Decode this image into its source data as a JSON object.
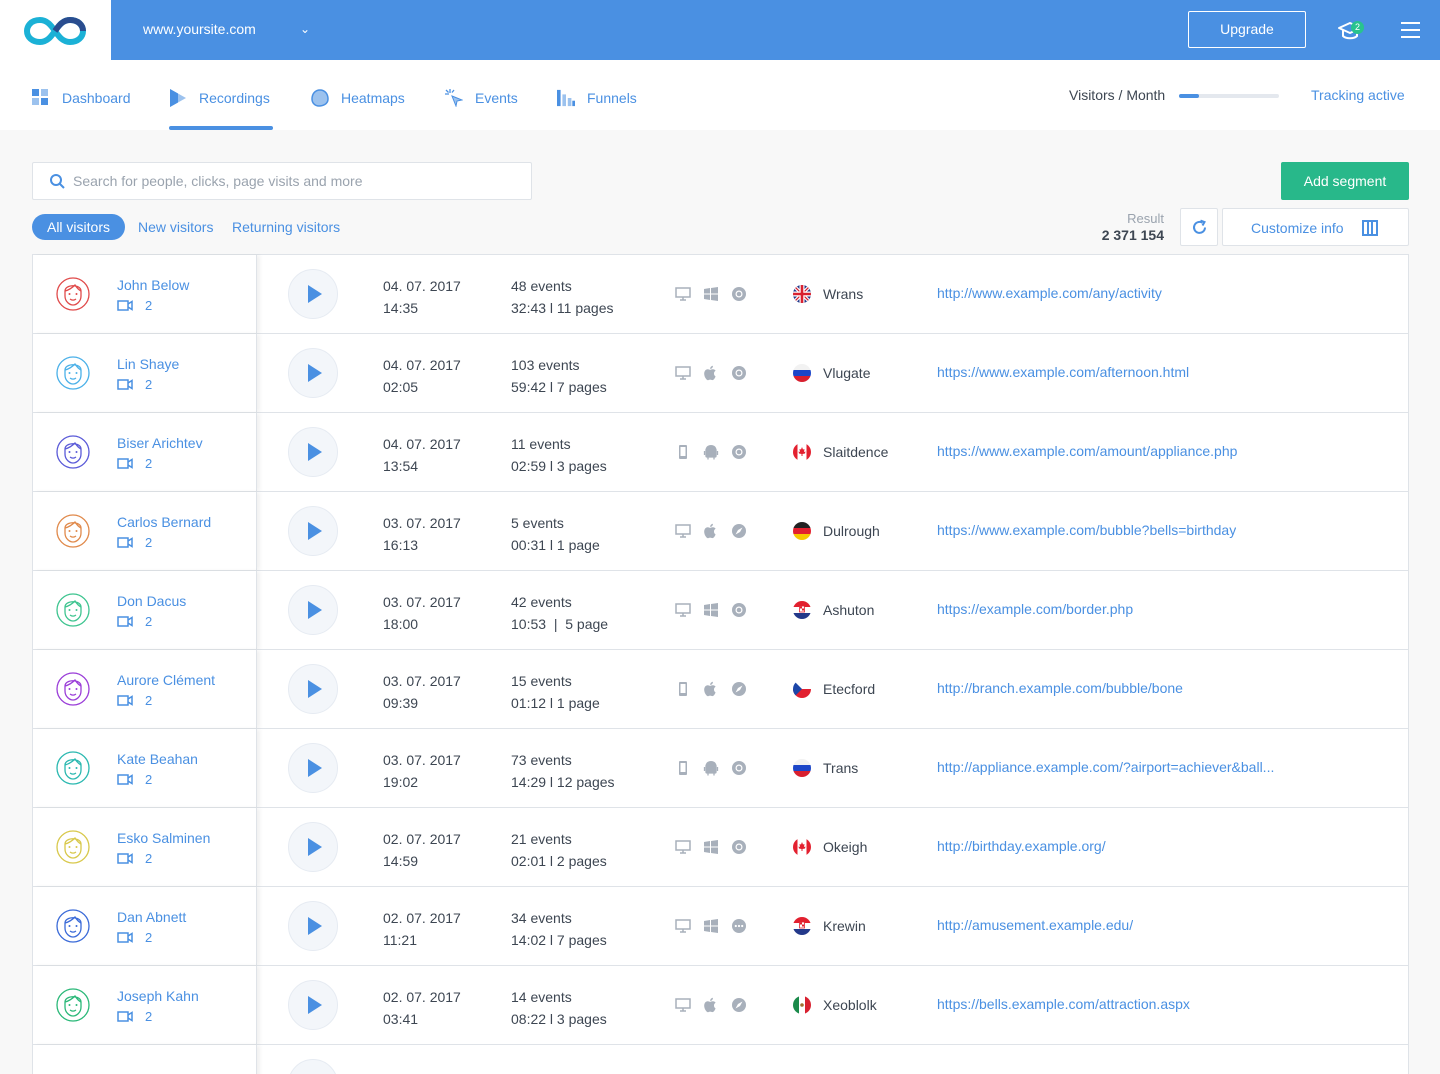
{
  "header": {
    "site": "www.yoursite.com",
    "upgrade_label": "Upgrade",
    "notification_count": "2",
    "brand_color": "#4a90e2"
  },
  "nav": {
    "items": [
      {
        "label": "Dashboard",
        "icon": "dashboard-icon"
      },
      {
        "label": "Recordings",
        "icon": "play-icon",
        "active": true
      },
      {
        "label": "Heatmaps",
        "icon": "heatmap-icon"
      },
      {
        "label": "Events",
        "icon": "cursor-click-icon"
      },
      {
        "label": "Funnels",
        "icon": "funnel-bars-icon"
      }
    ],
    "visitors_label": "Visitors / Month",
    "visitors_progress": 0.2,
    "tracking_label": "Tracking active"
  },
  "search": {
    "placeholder": "Search for people, clicks, page visits and more"
  },
  "add_segment_label": "Add segment",
  "filters": {
    "all": "All visitors",
    "new": "New visitors",
    "returning": "Returning visitors"
  },
  "result": {
    "label": "Result",
    "value": "2 371 154"
  },
  "customize_label": "Customize info",
  "recordings": [
    {
      "name": "John Below",
      "count": "2",
      "date": "04. 07. 2017",
      "time": "14:35",
      "events": "48 events",
      "duration": "32:43 l 11 pages",
      "device": "desktop",
      "os": "windows",
      "browser": "chrome",
      "flag": "uk",
      "city": "Wrans",
      "url": "http://www.example.com/any/activity",
      "avatar_color": "#e04a4a"
    },
    {
      "name": "Lin Shaye",
      "count": "2",
      "date": "04. 07. 2017",
      "time": "02:05",
      "events": "103 events",
      "duration": "59:42 l 7 pages",
      "device": "desktop",
      "os": "apple",
      "browser": "chrome",
      "flag": "russia",
      "city": "Vlugate",
      "url": "https://www.example.com/afternoon.html",
      "avatar_color": "#4ab0e8"
    },
    {
      "name": "Biser Arichtev",
      "count": "2",
      "date": "04. 07. 2017",
      "time": "13:54",
      "events": "11 events",
      "duration": "02:59 l 3 pages",
      "device": "mobile",
      "os": "android",
      "browser": "chrome",
      "flag": "canada",
      "city": "Slaitdence",
      "url": "https://www.example.com/amount/appliance.php",
      "avatar_color": "#5a5ad8"
    },
    {
      "name": "Carlos Bernard",
      "count": "2",
      "date": "03. 07. 2017",
      "time": "16:13",
      "events": "5 events",
      "duration": "00:31 l 1 page",
      "device": "desktop",
      "os": "apple",
      "browser": "safari",
      "flag": "germany",
      "city": "Dulrough",
      "url": "https://www.example.com/bubble?bells=birthday",
      "avatar_color": "#e0894a"
    },
    {
      "name": "Don Dacus",
      "count": "2",
      "date": "03. 07. 2017",
      "time": "18:00",
      "events": "42 events",
      "duration": "10:53  |  5 page",
      "device": "desktop",
      "os": "windows",
      "browser": "chrome",
      "flag": "croatia",
      "city": "Ashuton",
      "url": "https://example.com/border.php",
      "avatar_color": "#3dc48f"
    },
    {
      "name": "Aurore Clément",
      "count": "2",
      "date": "03. 07. 2017",
      "time": "09:39",
      "events": "15 events",
      "duration": "01:12 l 1 page",
      "device": "mobile",
      "os": "apple",
      "browser": "safari",
      "flag": "czech",
      "city": "Etecford",
      "url": "http://branch.example.com/bubble/bone",
      "avatar_color": "#9a3dd8"
    },
    {
      "name": "Kate Beahan",
      "count": "2",
      "date": "03. 07. 2017",
      "time": "19:02",
      "events": "73 events",
      "duration": "14:29 l 12 pages",
      "device": "mobile",
      "os": "android",
      "browser": "chrome",
      "flag": "russia",
      "city": "Trans",
      "url": "http://appliance.example.com/?airport=achiever&ball...",
      "avatar_color": "#2ab8b0"
    },
    {
      "name": "Esko Salminen",
      "count": "2",
      "date": "02. 07. 2017",
      "time": "14:59",
      "events": "21 events",
      "duration": "02:01 l 2 pages",
      "device": "desktop",
      "os": "windows",
      "browser": "chrome",
      "flag": "canada",
      "city": "Okeigh",
      "url": "http://birthday.example.org/",
      "avatar_color": "#d8c84a"
    },
    {
      "name": "Dan Abnett",
      "count": "2",
      "date": "02. 07. 2017",
      "time": "11:21",
      "events": "34 events",
      "duration": "14:02 l 7 pages",
      "device": "desktop",
      "os": "windows",
      "browser": "other",
      "flag": "croatia",
      "city": "Krewin",
      "url": "http://amusement.example.edu/",
      "avatar_color": "#3a6ad8"
    },
    {
      "name": "Joseph Kahn",
      "count": "2",
      "date": "02. 07. 2017",
      "time": "03:41",
      "events": "14 events",
      "duration": "08:22 l 3 pages",
      "device": "desktop",
      "os": "apple",
      "browser": "safari",
      "flag": "mexico",
      "city": "Xeoblolk",
      "url": "https://bells.example.com/attraction.aspx",
      "avatar_color": "#2ab878"
    }
  ]
}
